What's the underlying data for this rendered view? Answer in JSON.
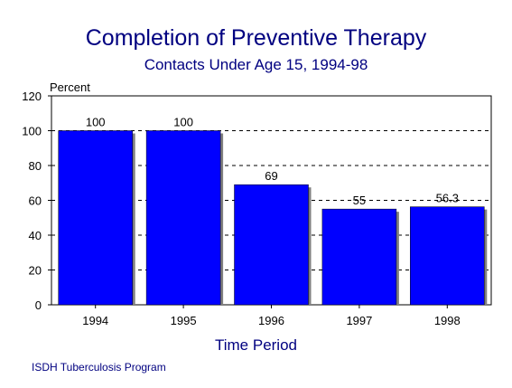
{
  "title": "Completion of Preventive Therapy",
  "subtitle": "Contacts Under Age 15, 1994-98",
  "source": "ISDH Tuberculosis Program",
  "colors": {
    "bar": "#0000ff",
    "text_accent": "#000080",
    "grid": "#000000"
  },
  "chart_data": {
    "type": "bar",
    "categories": [
      "1994",
      "1995",
      "1996",
      "1997",
      "1998"
    ],
    "values": [
      100,
      100,
      69,
      55,
      56.3
    ],
    "value_labels": [
      "100",
      "100",
      "69",
      "55",
      "56.3"
    ],
    "xlabel": "Time Period",
    "ylabel": "Percent",
    "ylim": [
      0,
      120
    ],
    "yticks": [
      0,
      20,
      40,
      60,
      80,
      100,
      120
    ],
    "grid": "dashed horizontal",
    "legend": "none"
  }
}
